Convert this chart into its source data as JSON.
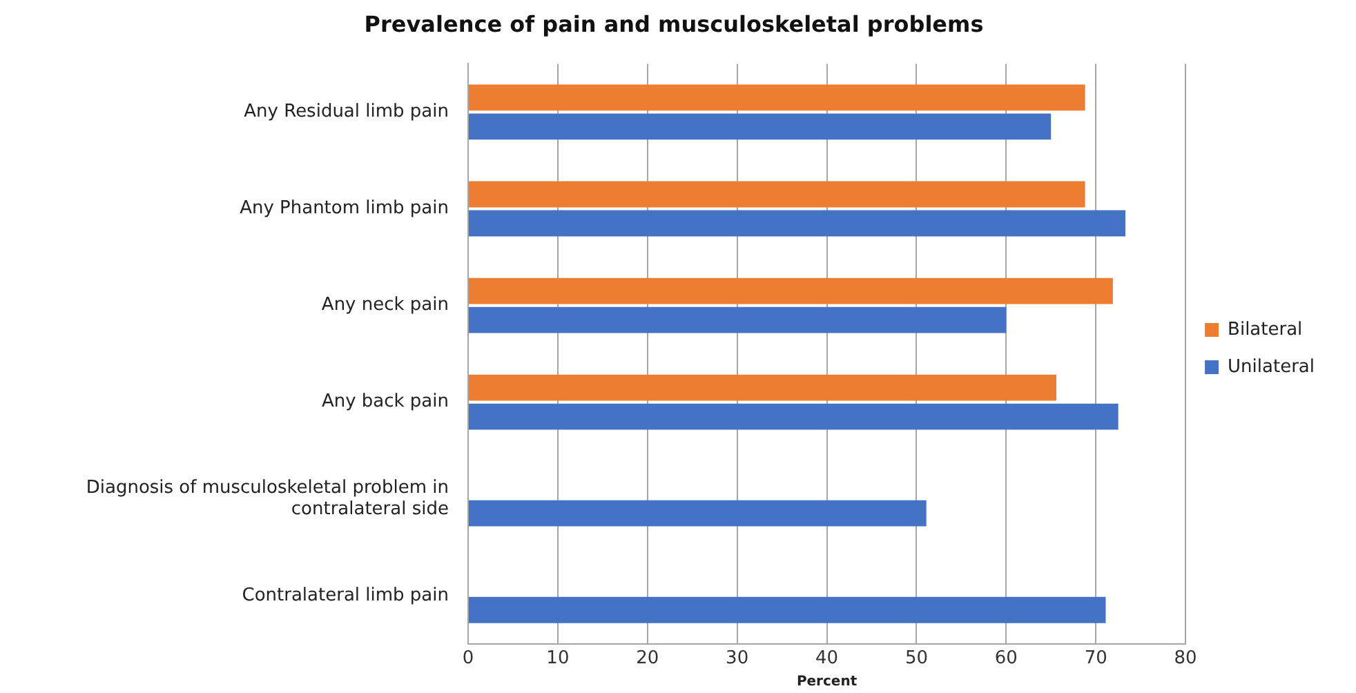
{
  "chart_data": {
    "type": "bar",
    "orientation": "horizontal",
    "title": "Prevalence of pain and musculoskeletal problems",
    "xlabel": "Percent",
    "categories": [
      "Any Residual limb pain",
      "Any Phantom limb pain",
      "Any neck pain",
      "Any back pain",
      "Diagnosis of musculoskeletal problem in contralateral side",
      "Contralateral limb pain"
    ],
    "series": [
      {
        "name": "Bilateral",
        "color": "#ed7d31",
        "values": [
          68.8,
          68.8,
          71.9,
          65.6,
          null,
          null
        ]
      },
      {
        "name": "Unilateral",
        "color": "#4472c4",
        "values": [
          65.0,
          73.3,
          60.0,
          72.5,
          51.1,
          71.1
        ]
      }
    ],
    "xlim": [
      0,
      80
    ],
    "xticks": [
      0,
      10,
      20,
      30,
      40,
      50,
      60,
      70,
      80
    ],
    "grid": "x",
    "legend": "right"
  }
}
